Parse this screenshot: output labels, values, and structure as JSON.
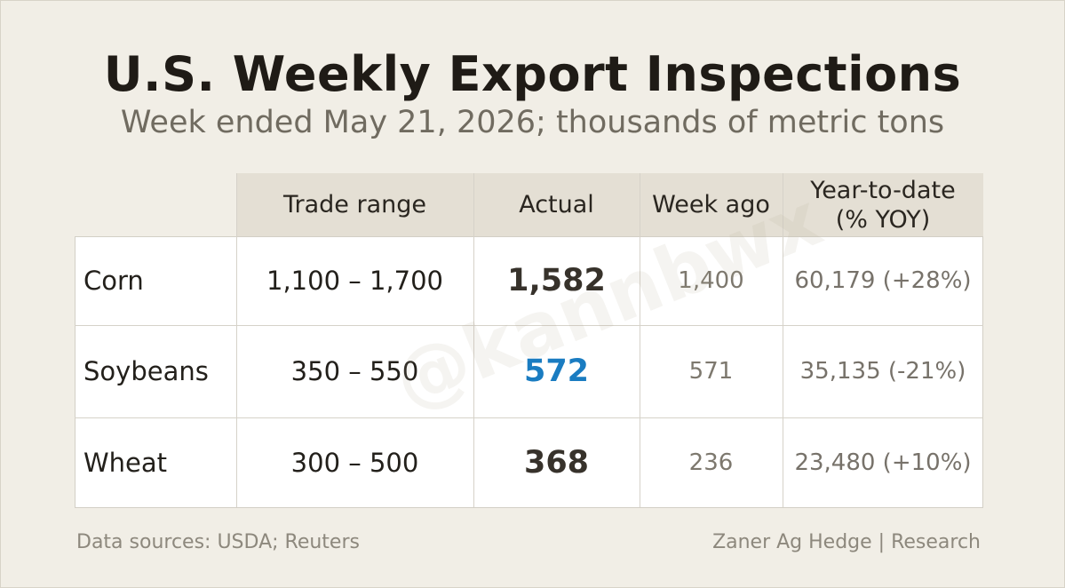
{
  "header": {
    "title": "U.S. Weekly Export Inspections",
    "subtitle": "Week ended May 21, 2026; thousands of metric tons"
  },
  "table": {
    "columns": [
      "Trade range",
      "Actual",
      "Week ago",
      "Year-to-date (% YOY)"
    ],
    "rows": [
      {
        "commodity": "Corn",
        "trade_range": "1,100 – 1,700",
        "actual": "1,582",
        "week_ago": "1,400",
        "ytd": "60,179 (+28%)"
      },
      {
        "commodity": "Soybeans",
        "trade_range": "350 – 550",
        "actual": "572",
        "week_ago": "571",
        "ytd": "35,135 (-21%)"
      },
      {
        "commodity": "Wheat",
        "trade_range": "300 – 500",
        "actual": "368",
        "week_ago": "236",
        "ytd": "23,480 (+10%)"
      }
    ]
  },
  "watermark": "@kannbwx",
  "footer": {
    "sources": "Data sources: USDA; Reuters",
    "credit": "Zaner Ag Hedge | Research"
  },
  "colors": {
    "background": "#f1eee6",
    "header_fill": "#e4dfd4",
    "highlight": "#1a7cc1"
  }
}
